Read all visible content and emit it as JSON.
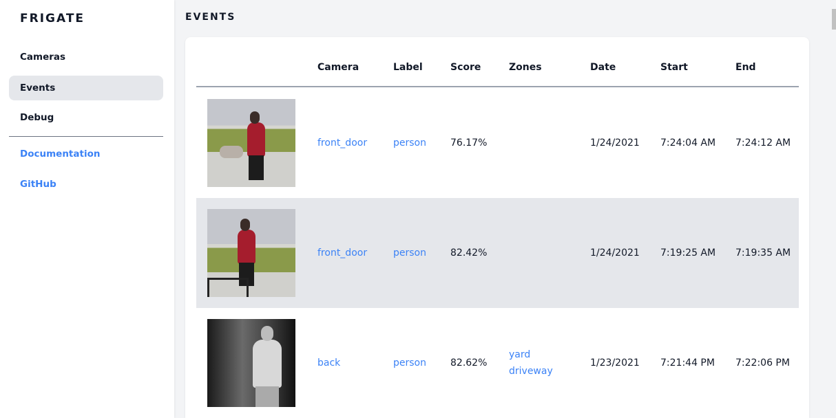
{
  "sidebar": {
    "brand": "FRIGATE",
    "items": [
      {
        "label": "Cameras",
        "active": false
      },
      {
        "label": "Events",
        "active": true
      },
      {
        "label": "Debug",
        "active": false
      }
    ],
    "links": [
      {
        "label": "Documentation"
      },
      {
        "label": "GitHub"
      }
    ]
  },
  "main": {
    "title": "EVENTS",
    "columns": [
      "",
      "Camera",
      "Label",
      "Score",
      "Zones",
      "Date",
      "Start",
      "End"
    ],
    "rows": [
      {
        "camera": "front_door",
        "label": "person",
        "score": "76.17%",
        "zones": [],
        "date": "1/24/2021",
        "start": "7:24:04 AM",
        "end": "7:24:12 AM"
      },
      {
        "camera": "front_door",
        "label": "person",
        "score": "82.42%",
        "zones": [],
        "date": "1/24/2021",
        "start": "7:19:25 AM",
        "end": "7:19:35 AM"
      },
      {
        "camera": "back",
        "label": "person",
        "score": "82.62%",
        "zones": [
          "yard",
          "driveway"
        ],
        "date": "1/23/2021",
        "start": "7:21:44 PM",
        "end": "7:22:06 PM"
      }
    ]
  },
  "colors": {
    "accent": "#3b82f6",
    "active_bg": "#e5e7eb",
    "page_bg": "#f3f4f6"
  }
}
